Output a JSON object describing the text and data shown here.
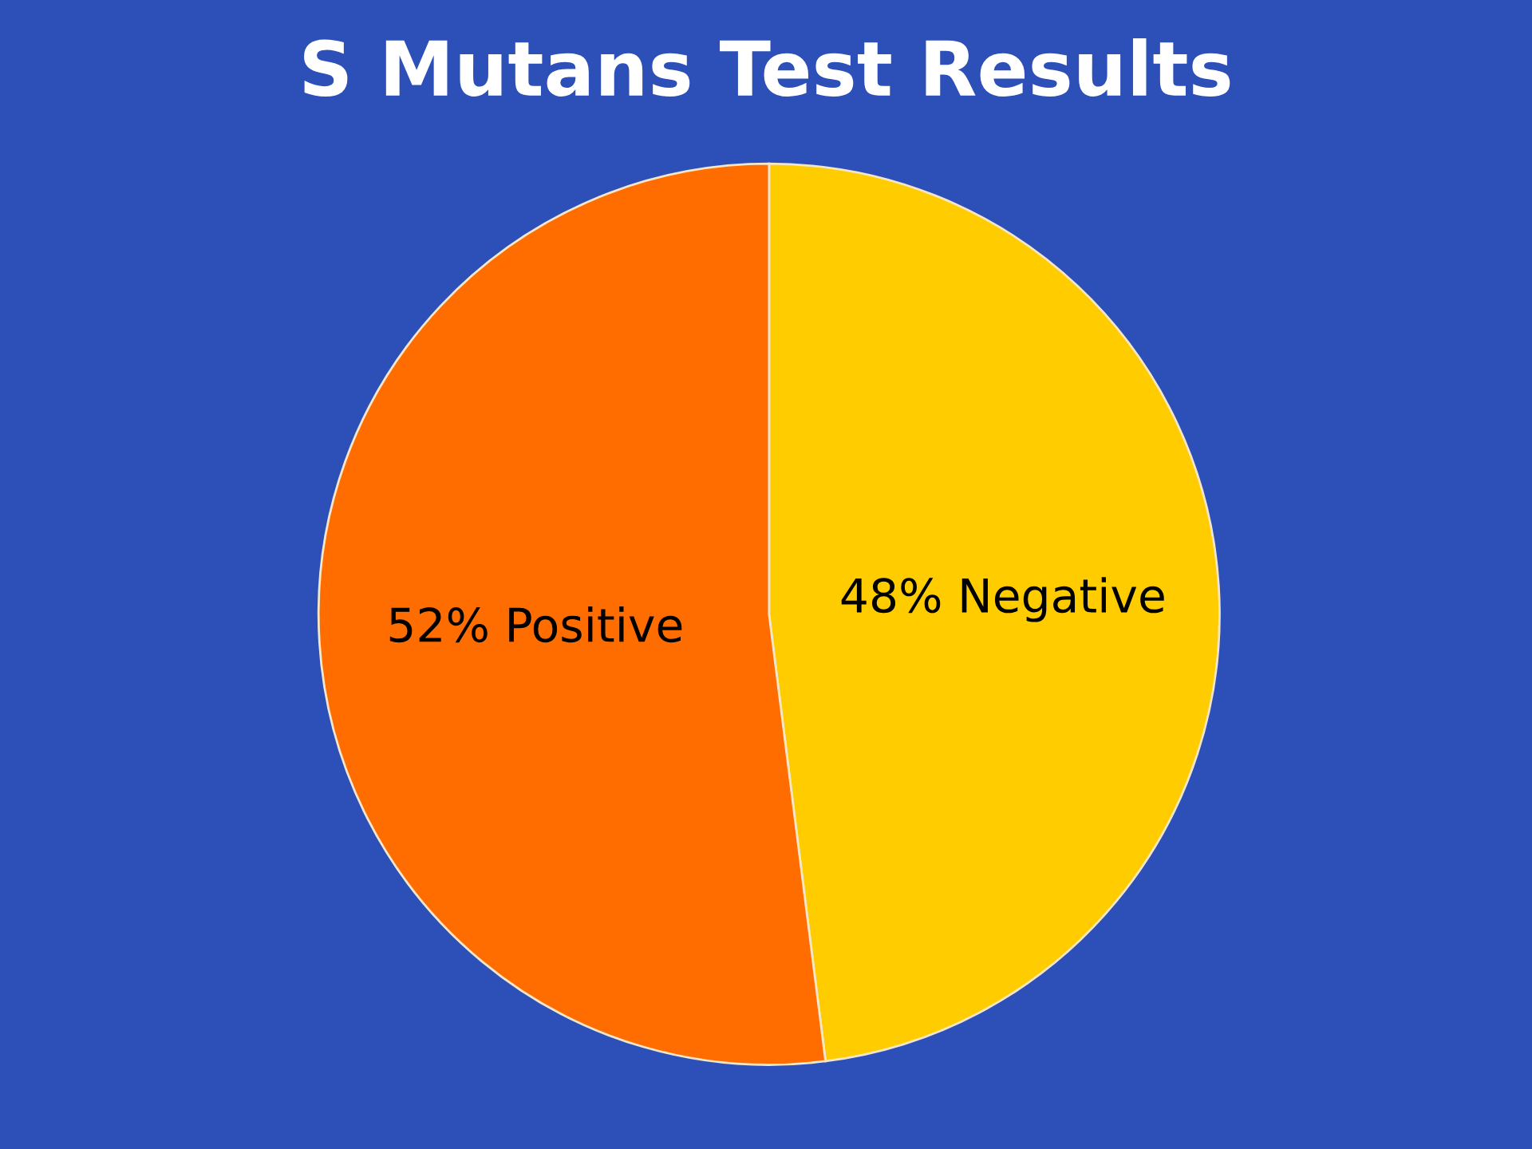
{
  "chart_data": {
    "type": "pie",
    "title": "S Mutans Test Results",
    "categories": [
      "48% Negative",
      "52% Positive"
    ],
    "values": [
      48,
      52
    ],
    "colors": [
      "#ffcc00",
      "#ff6d00"
    ]
  }
}
